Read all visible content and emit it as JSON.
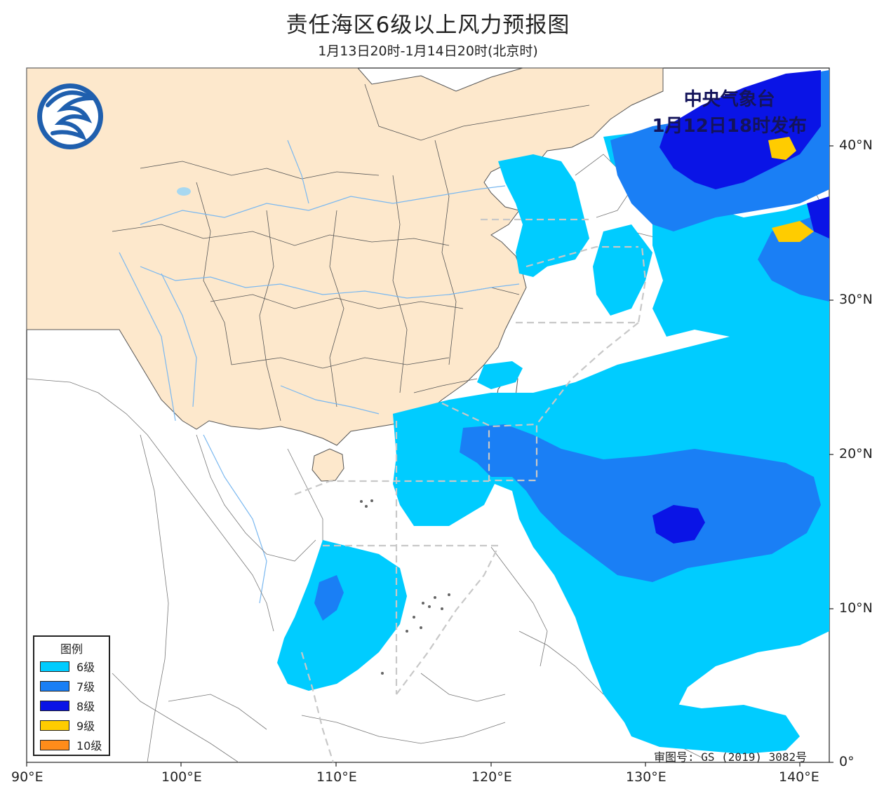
{
  "title": "责任海区6级以上风力预报图",
  "subtitle": "1月13日20时-1月14日20时(北京时)",
  "issuer": {
    "line1": "中央气象台",
    "line2": "1月12日18时发布"
  },
  "approval_number": "审图号: GS (2019) 3082号",
  "legend": {
    "title": "图例",
    "items": [
      {
        "label": "6级",
        "color": "#00ccff"
      },
      {
        "label": "7级",
        "color": "#1a7ff5"
      },
      {
        "label": "8级",
        "color": "#0a14e6"
      },
      {
        "label": "9级",
        "color": "#ffcc00"
      },
      {
        "label": "10级",
        "color": "#ff8c1a"
      }
    ]
  },
  "axes": {
    "lon_labels": [
      "90°E",
      "100°E",
      "110°E",
      "120°E",
      "130°E",
      "140°E"
    ],
    "lat_labels": [
      "40°N",
      "30°N",
      "20°N",
      "10°N",
      "0°"
    ]
  },
  "colors": {
    "land_china": "#fde8cc",
    "ocean": "#ffffff",
    "border": "#555555",
    "river": "#7ab8f0",
    "zone_line": "#c8c8c8"
  },
  "logo": "cma-logo-icon"
}
